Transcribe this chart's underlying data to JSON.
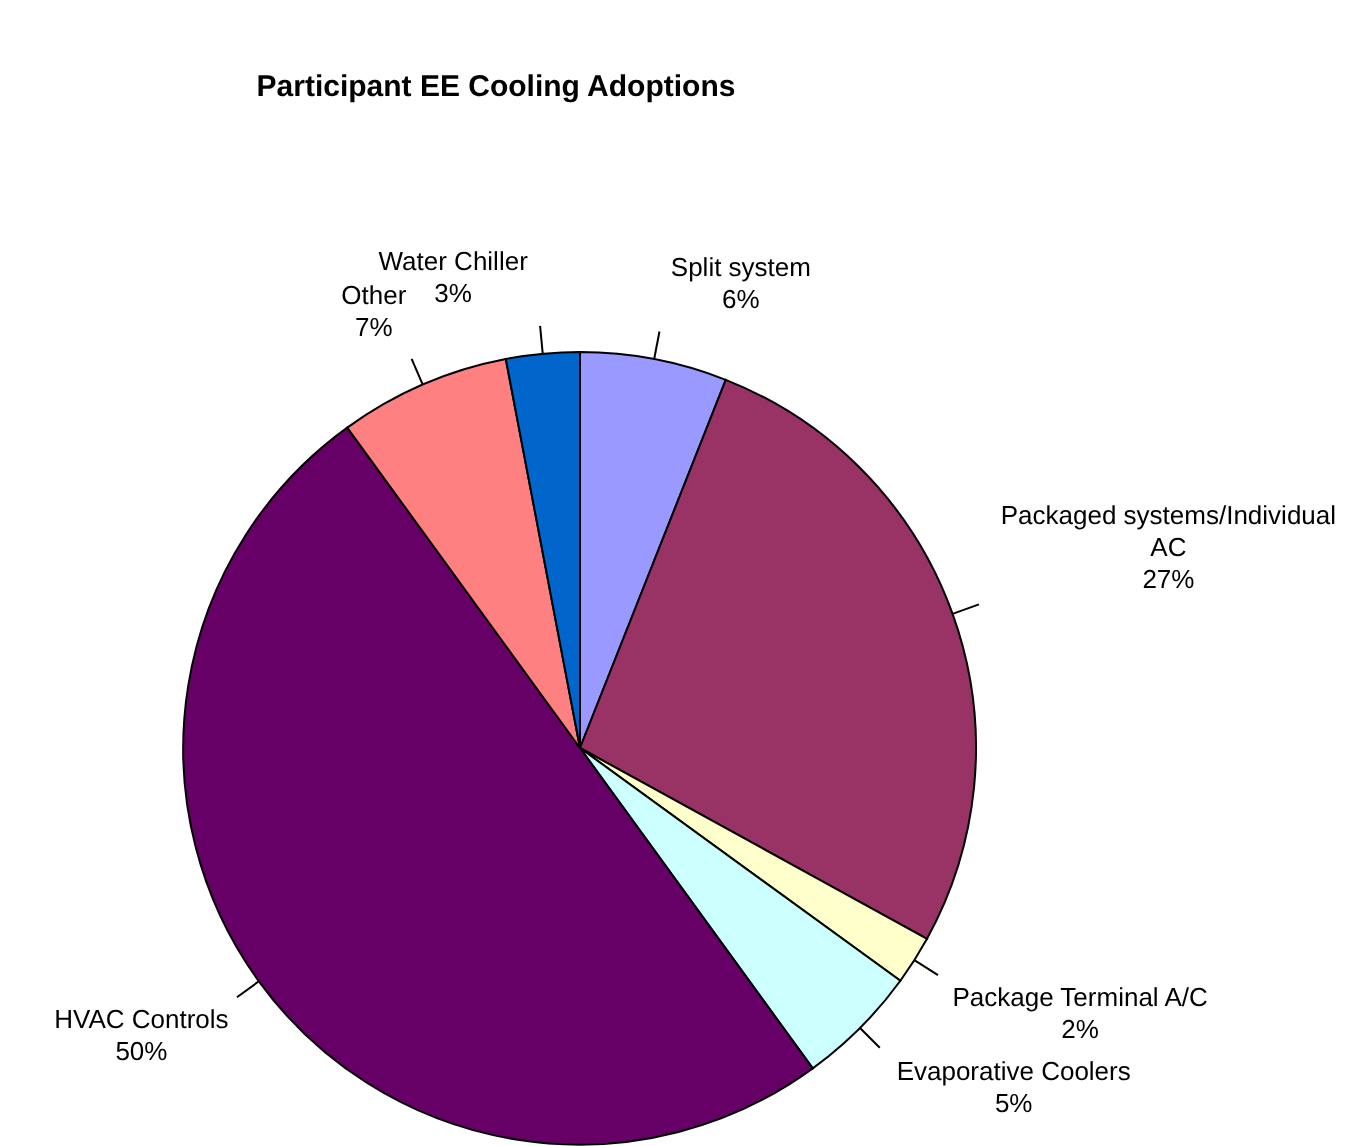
{
  "chart_data": {
    "type": "pie",
    "title": "Participant EE Cooling Adoptions",
    "categories": [
      "Split system",
      "Packaged systems/Individual AC",
      "Package Terminal A/C",
      "Evaporative Coolers",
      "HVAC Controls",
      "Other",
      "Water Chiller"
    ],
    "values": [
      6,
      27,
      2,
      5,
      50,
      7,
      3
    ],
    "colors": [
      "#9999ff",
      "#993366",
      "#ffffcc",
      "#ccffff",
      "#660066",
      "#ff8080",
      "#0066cc"
    ],
    "value_labels": [
      "6%",
      "27%",
      "2%",
      "5%",
      "50%",
      "7%",
      "3%"
    ],
    "legend": false
  }
}
